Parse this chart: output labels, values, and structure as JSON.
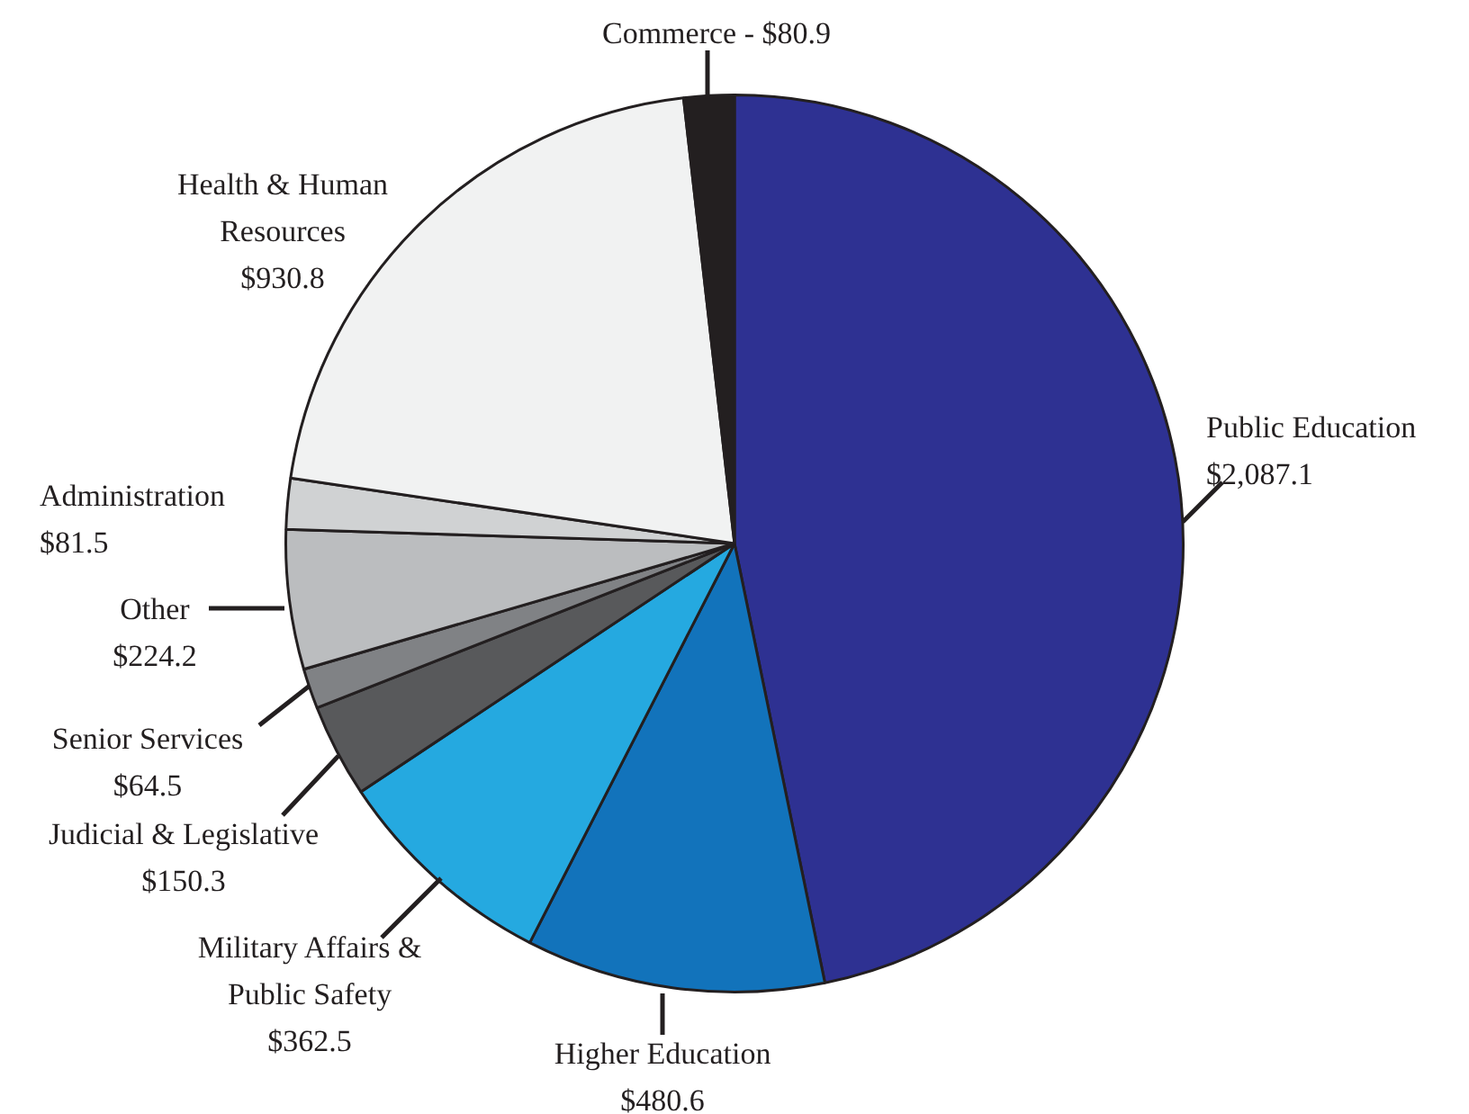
{
  "chart_data": {
    "type": "pie",
    "categories": [
      "Public Education",
      "Higher Education",
      "Military Affairs & Public Safety",
      "Judicial & Legislative",
      "Senior Services",
      "Other",
      "Administration",
      "Health & Human Resources",
      "Commerce"
    ],
    "values": [
      2087.1,
      480.6,
      362.5,
      150.3,
      64.5,
      224.2,
      81.5,
      930.8,
      80.9
    ],
    "value_labels": [
      "$2,087.1",
      "$480.6",
      "$362.5",
      "$150.3",
      "$64.5",
      "$224.2",
      "$81.5",
      "$930.8",
      "$80.9"
    ],
    "colors": [
      "#2e3192",
      "#1273bb",
      "#25a9e0",
      "#58595b",
      "#808285",
      "#bbbdbf",
      "#d0d2d3",
      "#f1f2f2",
      "#231f20"
    ],
    "legend": false
  }
}
